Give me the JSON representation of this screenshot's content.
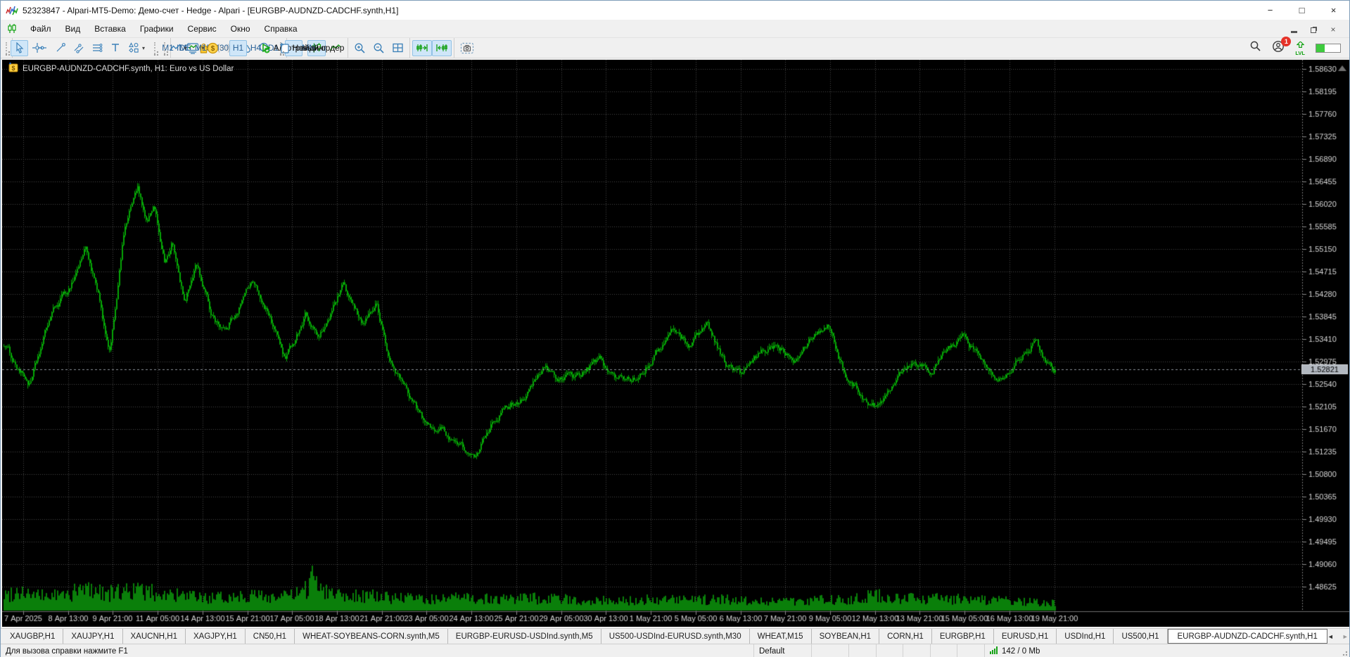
{
  "window": {
    "title": "52323847 - Alpari-MT5-Demo: Демо-счет - Hedge - Alpari - [EURGBP-AUDNZD-CADCHF.synth,H1]",
    "controls": {
      "minimize": "−",
      "maximize": "□",
      "close": "×"
    }
  },
  "menu": {
    "items": [
      "Файл",
      "Вид",
      "Вставка",
      "Графики",
      "Сервис",
      "Окно",
      "Справка"
    ]
  },
  "toolbar": {
    "groups": [
      {
        "grip": true,
        "buttons": [
          {
            "name": "cursor",
            "icon": "cursor-icon",
            "selected": true
          },
          {
            "name": "crosshair",
            "icon": "crosshair-icon"
          }
        ]
      },
      {
        "sep": true,
        "buttons": [
          {
            "name": "vertical-line",
            "icon": "vline-icon"
          },
          {
            "name": "horizontal-line",
            "icon": "hline-icon"
          },
          {
            "name": "trendline",
            "icon": "trendline-icon"
          },
          {
            "name": "channel",
            "icon": "channel-icon"
          },
          {
            "name": "fibonacci",
            "icon": "fibo-icon"
          },
          {
            "name": "text",
            "icon": "text-icon"
          },
          {
            "name": "shapes",
            "icon": "shapes-icon",
            "dropdown": true
          }
        ]
      },
      {
        "grip": true,
        "buttons": [
          {
            "name": "tf-m1",
            "label": "M1",
            "blue": true
          },
          {
            "name": "tf-m5",
            "label": "M5",
            "blue": true
          },
          {
            "name": "tf-m15",
            "label": "M15",
            "blue": true
          },
          {
            "name": "tf-m30",
            "label": "M30",
            "blue": true
          },
          {
            "name": "tf-h1",
            "label": "H1",
            "blue": true,
            "selected": true
          },
          {
            "name": "tf-h4",
            "label": "H4",
            "blue": true
          },
          {
            "name": "tf-d1",
            "label": "D1",
            "blue": true
          },
          {
            "name": "tf-w1",
            "label": "W1",
            "blue": true
          },
          {
            "name": "tf-mn",
            "label": "MN",
            "blue": true
          }
        ]
      },
      {
        "grip": true,
        "buttons": [
          {
            "name": "chart-type",
            "icon": "linechart-icon",
            "dropdown": true
          },
          {
            "name": "indicators",
            "icon": "indicators-icon",
            "dropdown": true
          },
          {
            "name": "symbols",
            "icon": "dollar-icon"
          }
        ]
      },
      {
        "sep": true,
        "buttons": [
          {
            "name": "ide",
            "label": "IDE",
            "blue": true
          },
          {
            "name": "market",
            "icon": "bag-icon"
          },
          {
            "name": "signals",
            "icon": "signals-icon",
            "disabled": true
          },
          {
            "name": "cloud",
            "icon": "cloud-icon"
          },
          {
            "name": "community",
            "icon": "community-icon"
          }
        ]
      },
      {
        "grip": true,
        "buttons": [
          {
            "name": "algo-trading",
            "icon": "play-icon",
            "label": "Алготрейдинг",
            "selected": true
          },
          {
            "name": "new-order",
            "icon": "neworder-icon",
            "label": "Новый ордер"
          }
        ]
      },
      {
        "sep": true,
        "buttons": [
          {
            "name": "bars-style",
            "icon": "bars-icon"
          },
          {
            "name": "candles-style",
            "icon": "candles-icon",
            "selected": true
          },
          {
            "name": "line-style",
            "icon": "linezigzag-icon"
          }
        ]
      },
      {
        "sep": true,
        "buttons": [
          {
            "name": "zoom-in",
            "icon": "zoomin-icon"
          },
          {
            "name": "zoom-out",
            "icon": "zoomout-icon"
          },
          {
            "name": "tile-windows",
            "icon": "tile-icon"
          }
        ]
      },
      {
        "sep": true,
        "buttons": [
          {
            "name": "shift-end",
            "icon": "shiftend-icon",
            "selected": true
          },
          {
            "name": "auto-scroll",
            "icon": "autoscroll-icon",
            "selected": true
          }
        ]
      },
      {
        "sep": true,
        "buttons": [
          {
            "name": "screenshot",
            "icon": "camera-icon"
          }
        ]
      }
    ],
    "right": {
      "notifications_badge": "1",
      "lvl_label": "LVL",
      "level_progress_pct": 34
    }
  },
  "chart": {
    "title": "EURGBP-AUDNZD-CADCHF.synth, H1:  Euro vs US Dollar",
    "current_price_label": "1.52821",
    "colors": {
      "bg": "#000000",
      "grid": "#4a4a4a",
      "candle": "#06a606",
      "volume": "#0a7f0a",
      "axis_text": "#d6d6d6",
      "axis_line": "#8a8a8a",
      "price_line": "#8e949c",
      "badge_bg": "#b2b8c0",
      "badge_text": "#000000"
    }
  },
  "chart_data": {
    "type": "candlestick",
    "symbol": "EURGBP-AUDNZD-CADCHF.synth",
    "timeframe": "H1",
    "title": "EURGBP-AUDNZD-CADCHF.synth, H1:  Euro vs US Dollar",
    "current_price": 1.52821,
    "ylim": [
      1.48625,
      1.5863
    ],
    "price_step": 0.00435,
    "grid": true,
    "price_axis": [
      "1.58630",
      "1.58195",
      "1.57760",
      "1.57325",
      "1.56890",
      "1.56455",
      "1.56020",
      "1.55585",
      "1.55150",
      "1.54715",
      "1.54280",
      "1.53845",
      "1.53410",
      "1.52975",
      "1.52540",
      "1.52105",
      "1.51670",
      "1.51235",
      "1.50800",
      "1.50365",
      "1.49930",
      "1.49495",
      "1.49060",
      "1.48625"
    ],
    "time_axis": [
      "7 Apr 2025",
      "8 Apr 13:00",
      "9 Apr 21:00",
      "11 Apr 05:00",
      "14 Apr 13:00",
      "15 Apr 21:00",
      "17 Apr 05:00",
      "18 Apr 13:00",
      "21 Apr 21:00",
      "23 Apr 05:00",
      "24 Apr 13:00",
      "25 Apr 21:00",
      "29 Apr 05:00",
      "30 Apr 13:00",
      "1 May 21:00",
      "5 May 05:00",
      "6 May 13:00",
      "7 May 21:00",
      "9 May 05:00",
      "12 May 13:00",
      "13 May 21:00",
      "15 May 05:00",
      "16 May 13:00",
      "19 May 21:00"
    ],
    "bars": 748,
    "anchors": [
      [
        0.0,
        1.5332
      ],
      [
        0.012,
        1.529
      ],
      [
        0.025,
        1.5252
      ],
      [
        0.045,
        1.539
      ],
      [
        0.062,
        1.544
      ],
      [
        0.078,
        1.552
      ],
      [
        0.09,
        1.542
      ],
      [
        0.1,
        1.5302
      ],
      [
        0.115,
        1.556
      ],
      [
        0.127,
        1.5632
      ],
      [
        0.135,
        1.556
      ],
      [
        0.143,
        1.5592
      ],
      [
        0.153,
        1.549
      ],
      [
        0.16,
        1.553
      ],
      [
        0.172,
        1.5408
      ],
      [
        0.183,
        1.549
      ],
      [
        0.197,
        1.539
      ],
      [
        0.211,
        1.5358
      ],
      [
        0.235,
        1.5452
      ],
      [
        0.25,
        1.54
      ],
      [
        0.268,
        1.53
      ],
      [
        0.287,
        1.5392
      ],
      [
        0.3,
        1.534
      ],
      [
        0.322,
        1.544
      ],
      [
        0.34,
        1.537
      ],
      [
        0.354,
        1.541
      ],
      [
        0.366,
        1.53
      ],
      [
        0.384,
        1.524
      ],
      [
        0.402,
        1.5172
      ],
      [
        0.418,
        1.5165
      ],
      [
        0.437,
        1.513
      ],
      [
        0.449,
        1.5106
      ],
      [
        0.465,
        1.519
      ],
      [
        0.482,
        1.5215
      ],
      [
        0.498,
        1.5238
      ],
      [
        0.515,
        1.5286
      ],
      [
        0.531,
        1.5262
      ],
      [
        0.548,
        1.5272
      ],
      [
        0.566,
        1.53
      ],
      [
        0.582,
        1.5262
      ],
      [
        0.6,
        1.5266
      ],
      [
        0.618,
        1.531
      ],
      [
        0.637,
        1.536
      ],
      [
        0.651,
        1.533
      ],
      [
        0.669,
        1.5372
      ],
      [
        0.687,
        1.5292
      ],
      [
        0.702,
        1.5272
      ],
      [
        0.719,
        1.531
      ],
      [
        0.735,
        1.5332
      ],
      [
        0.751,
        1.531
      ],
      [
        0.768,
        1.535
      ],
      [
        0.785,
        1.5372
      ],
      [
        0.8,
        1.5272
      ],
      [
        0.817,
        1.5232
      ],
      [
        0.833,
        1.521
      ],
      [
        0.851,
        1.5282
      ],
      [
        0.866,
        1.5302
      ],
      [
        0.883,
        1.5282
      ],
      [
        0.899,
        1.5322
      ],
      [
        0.915,
        1.5346
      ],
      [
        0.932,
        1.5292
      ],
      [
        0.948,
        1.5272
      ],
      [
        0.965,
        1.5302
      ],
      [
        0.98,
        1.5342
      ],
      [
        0.991,
        1.5302
      ],
      [
        1.0,
        1.52821
      ]
    ],
    "volume_anchors": [
      [
        0,
        0.4
      ],
      [
        0.015,
        0.55
      ],
      [
        0.03,
        0.38
      ],
      [
        0.06,
        0.42
      ],
      [
        0.08,
        0.6
      ],
      [
        0.1,
        0.45
      ],
      [
        0.12,
        0.55
      ],
      [
        0.14,
        0.48
      ],
      [
        0.17,
        0.38
      ],
      [
        0.2,
        0.32
      ],
      [
        0.23,
        0.42
      ],
      [
        0.26,
        0.36
      ],
      [
        0.285,
        0.45
      ],
      [
        0.295,
        1.0
      ],
      [
        0.305,
        0.55
      ],
      [
        0.32,
        0.45
      ],
      [
        0.35,
        0.38
      ],
      [
        0.38,
        0.33
      ],
      [
        0.41,
        0.3
      ],
      [
        0.44,
        0.34
      ],
      [
        0.47,
        0.3
      ],
      [
        0.5,
        0.33
      ],
      [
        0.53,
        0.3
      ],
      [
        0.56,
        0.28
      ],
      [
        0.59,
        0.26
      ],
      [
        0.62,
        0.3
      ],
      [
        0.65,
        0.27
      ],
      [
        0.68,
        0.3
      ],
      [
        0.71,
        0.27
      ],
      [
        0.74,
        0.25
      ],
      [
        0.77,
        0.28
      ],
      [
        0.8,
        0.3
      ],
      [
        0.825,
        0.42
      ],
      [
        0.85,
        0.3
      ],
      [
        0.88,
        0.33
      ],
      [
        0.91,
        0.3
      ],
      [
        0.94,
        0.27
      ],
      [
        0.97,
        0.24
      ],
      [
        1.0,
        0.2
      ]
    ]
  },
  "tabs": {
    "items": [
      "XAUGBP,H1",
      "XAUJPY,H1",
      "XAUCNH,H1",
      "XAGJPY,H1",
      "CN50,H1",
      "WHEAT-SOYBEANS-CORN.synth,M5",
      "EURGBP-EURUSD-USDInd.synth,M5",
      "US500-USDInd-EURUSD.synth,M30",
      "WHEAT,M15",
      "SOYBEAN,H1",
      "CORN,H1",
      "EURGBP,H1",
      "EURUSD,H1",
      "USDInd,H1",
      "US500,H1",
      "EURGBP-AUDNZD-CADCHF.synth,H1"
    ],
    "active": "EURGBP-AUDNZD-CADCHF.synth,H1",
    "arrow_left": "◄",
    "arrow_right": "►"
  },
  "status": {
    "help": "Для вызова справки нажмите F1",
    "profile": "Default",
    "traffic": "142 / 0 Mb"
  }
}
